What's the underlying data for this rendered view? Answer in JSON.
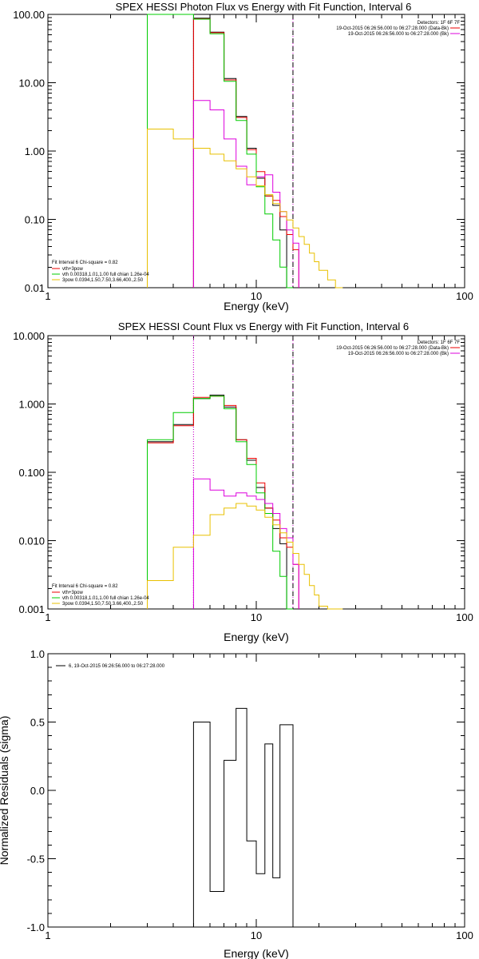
{
  "chart_data": [
    {
      "type": "line",
      "title": "SPEX HESSI Photon Flux vs Energy with Fit Function, Interval 6",
      "xlabel": "Energy (keV)",
      "ylabel": "",
      "xscale": "log",
      "yscale": "log",
      "xlim": [
        1,
        100
      ],
      "ylim": [
        0.01,
        100
      ],
      "xtick_labels": [
        "1",
        "10",
        "100"
      ],
      "ytick_labels": [
        "0.01",
        "0.10",
        "1.00",
        "10.00",
        "100.00"
      ],
      "legend_text": {
        "stat": "Fit Interval 6    Chi-square = 0.82",
        "items": [
          "vth+3pow",
          "vth 0.00318,1.01,1.00  full chian 1.26e-04",
          "3pow 0.0394,1.50,7.50,3.66,400.,2.50"
        ],
        "info": [
          "Detectors: 1F 6F 7F",
          "19-Oct-2015 06:26:56.000 to 06:27:28.000 (Data-Bk)",
          "19-Oct-2015 06:26:56.000 to 06:27:28.000 (Bk)"
        ]
      },
      "edges": [
        3,
        4,
        5,
        6,
        7,
        8,
        9,
        10,
        11,
        12,
        13,
        14,
        15,
        16,
        17,
        18,
        19,
        20,
        22,
        24,
        26
      ],
      "series": [
        {
          "color": "#000000",
          "values": [
            null,
            null,
            88,
            55,
            11.5,
            3.2,
            1.1,
            0.4,
            0.22,
            0.16,
            0.07,
            null,
            null,
            null,
            null,
            null,
            null,
            null,
            null,
            null
          ]
        },
        {
          "color": "#ee0000",
          "values": [
            null,
            null,
            86,
            54,
            11,
            3.1,
            1.05,
            0.5,
            0.22,
            0.19,
            0.11,
            0.06,
            0.036,
            null,
            null,
            null,
            null,
            null,
            null,
            null
          ]
        },
        {
          "color": "#00cc00",
          "values": [
            100,
            100,
            85,
            52,
            10.5,
            2.8,
            0.9,
            0.3,
            0.12,
            0.05,
            0.02,
            0.008,
            null,
            null,
            null,
            null,
            null,
            null,
            null,
            null
          ]
        },
        {
          "color": "#dd00dd",
          "values": [
            null,
            null,
            5.5,
            4,
            1.5,
            0.6,
            0.32,
            0.42,
            0.45,
            0.25,
            0.13,
            0.07,
            0.045,
            null,
            null,
            null,
            null,
            null,
            null,
            null
          ]
        },
        {
          "color": "#e8c000",
          "values": [
            2.1,
            1.5,
            1.1,
            0.9,
            0.72,
            0.55,
            0.42,
            0.31,
            0.23,
            0.17,
            0.13,
            0.098,
            0.075,
            0.056,
            0.043,
            0.032,
            0.024,
            0.018,
            0.013,
            0.009
          ]
        }
      ],
      "vlines": [
        {
          "x": 5,
          "color": "#dd00dd",
          "style": "dotted"
        },
        {
          "x": 15,
          "color": "#dd00dd",
          "style": "dotted"
        },
        {
          "x": 15,
          "color": "#000000",
          "style": "dashed"
        }
      ]
    },
    {
      "type": "line",
      "title": "SPEX HESSI Count Flux vs Energy with Fit Function, Interval 6",
      "xlabel": "Energy (keV)",
      "ylabel": "",
      "xscale": "log",
      "yscale": "log",
      "xlim": [
        1,
        100
      ],
      "ylim": [
        0.001,
        10
      ],
      "xtick_labels": [
        "1",
        "10",
        "100"
      ],
      "ytick_labels": [
        "0.001",
        "0.010",
        "0.100",
        "1.000",
        "10.000"
      ],
      "legend_text": {
        "stat": "Fit Interval 6    Chi-square = 0.82",
        "items": [
          "vth+3pow",
          "vth 0.00318,1.01,1.00  full chian 1.26e-04",
          "3pow 0.0394,1.50,7.50,3.66,400.,2.50"
        ],
        "info": [
          "Detectors: 1F 6F 7F",
          "19-Oct-2015 06:26:56.000 to 06:27:28.000 (Data-Bk)",
          "19-Oct-2015 06:26:56.000 to 06:27:28.000 (Bk)"
        ]
      },
      "edges": [
        3,
        4,
        5,
        6,
        7,
        8,
        9,
        10,
        11,
        12,
        13,
        14,
        15,
        16,
        17,
        18,
        19,
        20,
        22,
        24,
        26
      ],
      "series": [
        {
          "color": "#000000",
          "values": [
            0.28,
            0.5,
            1.2,
            1.35,
            0.9,
            0.3,
            0.15,
            0.06,
            0.03,
            0.015,
            0.009,
            null,
            null,
            null,
            null,
            null,
            null,
            null,
            null,
            null
          ]
        },
        {
          "color": "#ee0000",
          "values": [
            0.27,
            0.48,
            1.25,
            1.3,
            0.95,
            0.3,
            0.16,
            0.07,
            0.03,
            0.02,
            0.011,
            0.008,
            0.0045,
            null,
            null,
            null,
            null,
            null,
            null,
            null
          ]
        },
        {
          "color": "#00cc00",
          "values": [
            0.3,
            0.75,
            1.2,
            1.3,
            0.85,
            0.28,
            0.13,
            0.05,
            0.025,
            0.007,
            0.003,
            0.001,
            null,
            null,
            null,
            null,
            null,
            null,
            null,
            null
          ]
        },
        {
          "color": "#dd00dd",
          "values": [
            null,
            null,
            0.08,
            0.055,
            0.045,
            0.05,
            0.045,
            0.04,
            0.035,
            0.025,
            0.015,
            0.011,
            0.0045,
            null,
            null,
            null,
            null,
            null,
            null,
            null
          ]
        },
        {
          "color": "#e8c000",
          "values": [
            0.0026,
            0.008,
            0.012,
            0.024,
            0.03,
            0.035,
            0.032,
            0.028,
            0.022,
            0.017,
            0.013,
            0.0095,
            0.0065,
            0.0045,
            0.0032,
            0.0022,
            0.0016,
            0.0011,
            0.0009,
            0.0007
          ]
        }
      ],
      "vlines": [
        {
          "x": 5,
          "color": "#000000",
          "style": "dotted"
        },
        {
          "x": 5,
          "color": "#dd00dd",
          "style": "dotted"
        },
        {
          "x": 15,
          "color": "#dd00dd",
          "style": "dotted"
        },
        {
          "x": 15,
          "color": "#000000",
          "style": "dashed"
        }
      ]
    },
    {
      "type": "line",
      "title": "",
      "xlabel": "Energy (keV)",
      "ylabel": "Normalized Residuals (sigma)",
      "xscale": "log",
      "yscale": "linear",
      "xlim": [
        1,
        100
      ],
      "ylim": [
        -1,
        1
      ],
      "xtick_labels": [
        "1",
        "10",
        "100"
      ],
      "ytick_labels": [
        "-1.0",
        "-0.5",
        "0.0",
        "0.5",
        "1.0"
      ],
      "legend_text": {
        "items": [
          "6, 19-Oct-2015 06:26:56.000 to 06:27:28.000"
        ]
      },
      "edges": [
        5,
        6,
        7,
        8,
        9,
        10,
        11,
        12,
        13,
        14,
        15
      ],
      "series": [
        {
          "color": "#000000",
          "values": [
            0.5,
            -0.74,
            0.22,
            0.6,
            -0.37,
            -0.61,
            0.34,
            -0.64,
            0.48,
            0.48
          ]
        }
      ]
    }
  ]
}
